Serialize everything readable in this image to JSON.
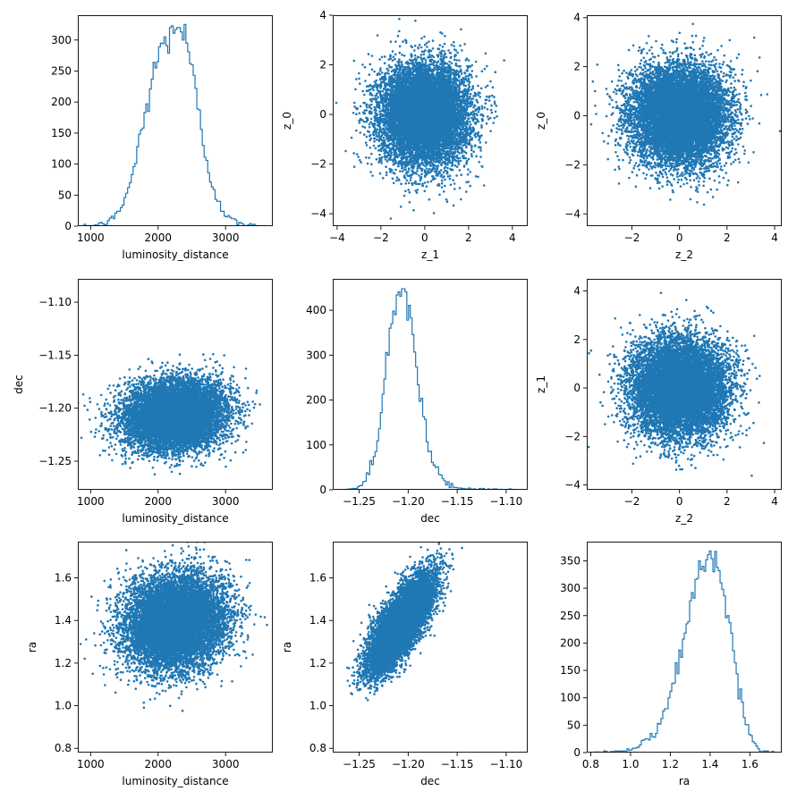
{
  "series_color": "#1f77b4",
  "chart_data": [
    {
      "type": "histogram",
      "row": 0,
      "col": 0,
      "xlabel": "luminosity_distance",
      "ylabel": "",
      "xlim": [
        810,
        3700
      ],
      "ylim": [
        0,
        340
      ],
      "xticks": [
        1000,
        2000,
        3000
      ],
      "yticks": [
        0,
        50,
        100,
        150,
        200,
        250,
        300
      ],
      "bin_range": [
        900,
        3600
      ],
      "n_bins": 100,
      "peak": 327,
      "profile": [
        [
          900,
          0
        ],
        [
          1050,
          1
        ],
        [
          1200,
          4
        ],
        [
          1350,
          13
        ],
        [
          1500,
          40
        ],
        [
          1650,
          95
        ],
        [
          1800,
          175
        ],
        [
          1950,
          255
        ],
        [
          2100,
          295
        ],
        [
          2200,
          315
        ],
        [
          2300,
          325
        ],
        [
          2400,
          300
        ],
        [
          2500,
          250
        ],
        [
          2600,
          180
        ],
        [
          2700,
          115
        ],
        [
          2800,
          70
        ],
        [
          2900,
          40
        ],
        [
          3000,
          20
        ],
        [
          3100,
          9
        ],
        [
          3200,
          4
        ],
        [
          3300,
          2
        ],
        [
          3450,
          1
        ],
        [
          3600,
          0
        ]
      ]
    },
    {
      "type": "scatter",
      "row": 0,
      "col": 1,
      "xlabel": "z_1",
      "ylabel": "z_0",
      "xlim": [
        -4.2,
        4.7
      ],
      "ylim": [
        -4.5,
        4.0
      ],
      "xticks": [
        -4,
        -2,
        0,
        2,
        4
      ],
      "yticks": [
        -4,
        -2,
        0,
        2,
        4
      ],
      "distribution": {
        "n_points": 10000,
        "x_mean": 0,
        "x_std": 1,
        "y_mean": 0,
        "y_std": 1,
        "correlation": 0
      }
    },
    {
      "type": "scatter",
      "row": 0,
      "col": 2,
      "xlabel": "z_2",
      "ylabel": "z_0",
      "xlim": [
        -3.9,
        4.3
      ],
      "ylim": [
        -4.5,
        4.1
      ],
      "xticks": [
        -2,
        0,
        2,
        4
      ],
      "yticks": [
        -4,
        -2,
        0,
        2,
        4
      ],
      "distribution": {
        "n_points": 10000,
        "x_mean": 0,
        "x_std": 1,
        "y_mean": 0,
        "y_std": 1,
        "correlation": 0
      }
    },
    {
      "type": "scatter",
      "row": 1,
      "col": 0,
      "xlabel": "luminosity_distance",
      "ylabel": "dec",
      "xlim": [
        810,
        3700
      ],
      "ylim": [
        -1.277,
        -1.078
      ],
      "xticks": [
        1000,
        2000,
        3000
      ],
      "yticks": [
        -1.25,
        -1.2,
        -1.15,
        -1.1
      ],
      "distribution": {
        "n_points": 10000,
        "x_mean": 2250,
        "x_std": 370,
        "y_mean": -1.207,
        "y_std": 0.016,
        "correlation": 0.1
      }
    },
    {
      "type": "histogram",
      "row": 1,
      "col": 1,
      "xlabel": "dec",
      "ylabel": "",
      "xlim": [
        -1.277,
        -1.078
      ],
      "ylim": [
        0,
        470
      ],
      "xticks": [
        -1.25,
        -1.2,
        -1.15,
        -1.1
      ],
      "yticks": [
        0,
        100,
        200,
        300,
        400
      ],
      "bin_range": [
        -1.268,
        -1.088
      ],
      "n_bins": 100,
      "peak": 448,
      "profile": [
        [
          -1.268,
          0
        ],
        [
          -1.255,
          2
        ],
        [
          -1.245,
          15
        ],
        [
          -1.235,
          70
        ],
        [
          -1.228,
          160
        ],
        [
          -1.222,
          290
        ],
        [
          -1.216,
          390
        ],
        [
          -1.21,
          430
        ],
        [
          -1.205,
          440
        ],
        [
          -1.2,
          400
        ],
        [
          -1.195,
          320
        ],
        [
          -1.19,
          230
        ],
        [
          -1.185,
          155
        ],
        [
          -1.178,
          85
        ],
        [
          -1.17,
          40
        ],
        [
          -1.162,
          15
        ],
        [
          -1.155,
          6
        ],
        [
          -1.145,
          2
        ],
        [
          -1.13,
          1
        ],
        [
          -1.088,
          0
        ]
      ]
    },
    {
      "type": "scatter",
      "row": 1,
      "col": 2,
      "xlabel": "z_2",
      "ylabel": "z_1",
      "xlim": [
        -3.9,
        4.3
      ],
      "ylim": [
        -4.2,
        4.5
      ],
      "xticks": [
        -2,
        0,
        2,
        4
      ],
      "yticks": [
        -4,
        -2,
        0,
        2,
        4
      ],
      "distribution": {
        "n_points": 10000,
        "x_mean": 0,
        "x_std": 1,
        "y_mean": 0,
        "y_std": 1,
        "correlation": 0
      }
    },
    {
      "type": "scatter",
      "row": 2,
      "col": 0,
      "xlabel": "luminosity_distance",
      "ylabel": "ra",
      "xlim": [
        810,
        3700
      ],
      "ylim": [
        0.78,
        1.77
      ],
      "xticks": [
        1000,
        2000,
        3000
      ],
      "yticks": [
        0.8,
        1.0,
        1.2,
        1.4,
        1.6
      ],
      "distribution": {
        "n_points": 10000,
        "x_mean": 2250,
        "x_std": 370,
        "y_mean": 1.39,
        "y_std": 0.11,
        "correlation": 0.1
      }
    },
    {
      "type": "scatter",
      "row": 2,
      "col": 1,
      "xlabel": "dec",
      "ylabel": "ra",
      "xlim": [
        -1.277,
        -1.078
      ],
      "ylim": [
        0.78,
        1.77
      ],
      "xticks": [
        -1.25,
        -1.2,
        -1.15,
        -1.1
      ],
      "yticks": [
        0.8,
        1.0,
        1.2,
        1.4,
        1.6
      ],
      "distribution": {
        "n_points": 10000,
        "x_mean": -1.207,
        "x_std": 0.016,
        "y_mean": 1.39,
        "y_std": 0.11,
        "correlation": 0.75
      }
    },
    {
      "type": "histogram",
      "row": 2,
      "col": 2,
      "xlabel": "ra",
      "ylabel": "",
      "xlim": [
        0.78,
        1.76
      ],
      "ylim": [
        0,
        385
      ],
      "xticks": [
        0.8,
        1.0,
        1.2,
        1.4,
        1.6
      ],
      "yticks": [
        0,
        50,
        100,
        150,
        200,
        250,
        300,
        350
      ],
      "bin_range": [
        0.82,
        1.72
      ],
      "n_bins": 100,
      "peak": 368,
      "profile": [
        [
          0.82,
          0
        ],
        [
          0.9,
          1
        ],
        [
          1.0,
          4
        ],
        [
          1.05,
          12
        ],
        [
          1.1,
          25
        ],
        [
          1.15,
          50
        ],
        [
          1.2,
          100
        ],
        [
          1.25,
          170
        ],
        [
          1.3,
          250
        ],
        [
          1.35,
          320
        ],
        [
          1.4,
          350
        ],
        [
          1.43,
          330
        ],
        [
          1.46,
          300
        ],
        [
          1.5,
          220
        ],
        [
          1.53,
          150
        ],
        [
          1.56,
          80
        ],
        [
          1.6,
          30
        ],
        [
          1.63,
          10
        ],
        [
          1.66,
          3
        ],
        [
          1.72,
          0
        ]
      ]
    }
  ]
}
